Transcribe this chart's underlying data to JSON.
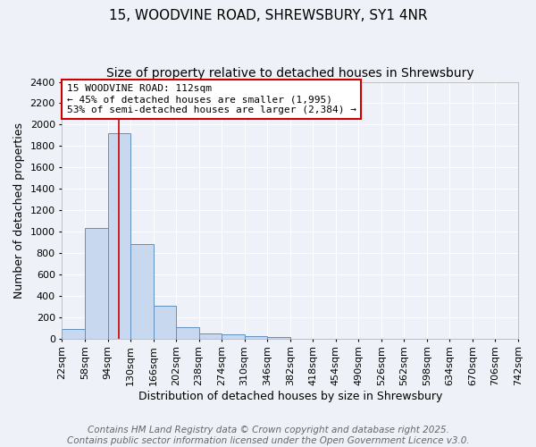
{
  "title": "15, WOODVINE ROAD, SHREWSBURY, SY1 4NR",
  "subtitle": "Size of property relative to detached houses in Shrewsbury",
  "xlabel": "Distribution of detached houses by size in Shrewsbury",
  "ylabel": "Number of detached properties",
  "bin_edges": [
    22,
    58,
    94,
    130,
    166,
    202,
    238,
    274,
    310,
    346,
    382,
    418,
    454,
    490,
    526,
    562,
    598,
    634,
    670,
    706,
    742
  ],
  "bin_labels": [
    "22sqm",
    "58sqm",
    "94sqm",
    "130sqm",
    "166sqm",
    "202sqm",
    "238sqm",
    "274sqm",
    "310sqm",
    "346sqm",
    "382sqm",
    "418sqm",
    "454sqm",
    "490sqm",
    "526sqm",
    "562sqm",
    "598sqm",
    "634sqm",
    "670sqm",
    "706sqm",
    "742sqm"
  ],
  "bar_heights": [
    90,
    1030,
    1920,
    880,
    310,
    110,
    50,
    40,
    20,
    15,
    0,
    0,
    0,
    0,
    0,
    0,
    0,
    0,
    0,
    0
  ],
  "bar_color": "#c8d8ee",
  "bar_edge_color": "#6090c0",
  "property_size": 112,
  "vline_color": "#cc0000",
  "ylim": [
    0,
    2400
  ],
  "yticks": [
    0,
    200,
    400,
    600,
    800,
    1000,
    1200,
    1400,
    1600,
    1800,
    2000,
    2200,
    2400
  ],
  "annotation_line1": "15 WOODVINE ROAD: 112sqm",
  "annotation_line2": "← 45% of detached houses are smaller (1,995)",
  "annotation_line3": "53% of semi-detached houses are larger (2,384) →",
  "annotation_box_color": "#ffffff",
  "annotation_box_edge_color": "#cc0000",
  "footer_line1": "Contains HM Land Registry data © Crown copyright and database right 2025.",
  "footer_line2": "Contains public sector information licensed under the Open Government Licence v3.0.",
  "background_color": "#eef2f8",
  "grid_color": "#ffffff",
  "title_fontsize": 11,
  "subtitle_fontsize": 10,
  "xlabel_fontsize": 9,
  "ylabel_fontsize": 9,
  "tick_fontsize": 8,
  "annotation_fontsize": 8,
  "footer_fontsize": 7.5
}
